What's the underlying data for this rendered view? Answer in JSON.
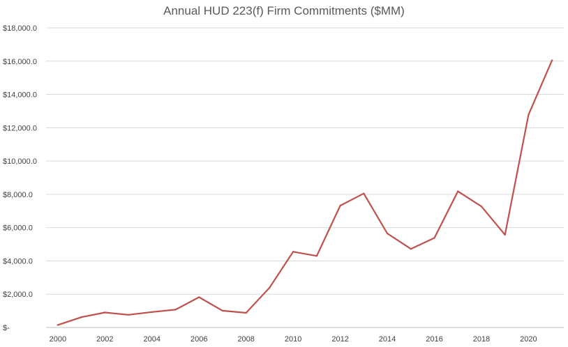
{
  "chart_data": {
    "type": "line",
    "title": "Annual HUD 223(f) Firm Commitments ($MM)",
    "xlabel": "",
    "ylabel": "",
    "x": [
      2000,
      2001,
      2002,
      2003,
      2004,
      2005,
      2006,
      2007,
      2008,
      2009,
      2010,
      2011,
      2012,
      2013,
      2014,
      2015,
      2016,
      2017,
      2018,
      2019,
      2020,
      2021
    ],
    "series": [
      {
        "values": [
          150,
          620,
          900,
          760,
          930,
          1070,
          1820,
          1010,
          880,
          2400,
          4550,
          4300,
          7320,
          8050,
          5650,
          4720,
          5380,
          8180,
          7270,
          5570,
          12780,
          16050
        ],
        "color": "#c0504d"
      }
    ],
    "ylim": [
      0,
      18000
    ],
    "y_ticks": [
      0,
      2000,
      4000,
      6000,
      8000,
      10000,
      12000,
      14000,
      16000,
      18000
    ],
    "y_tick_labels": [
      "$-",
      "$2,000.0",
      "$4,000.0",
      "$6,000.0",
      "$8,000.0",
      "$10,000.0",
      "$12,000.0",
      "$14,000.0",
      "$16,000.0",
      "$18,000.0"
    ],
    "x_tick_labels": [
      "2000",
      "2002",
      "2004",
      "2006",
      "2008",
      "2010",
      "2012",
      "2014",
      "2016",
      "2018",
      "2020"
    ],
    "grid": true,
    "legend": "none"
  }
}
